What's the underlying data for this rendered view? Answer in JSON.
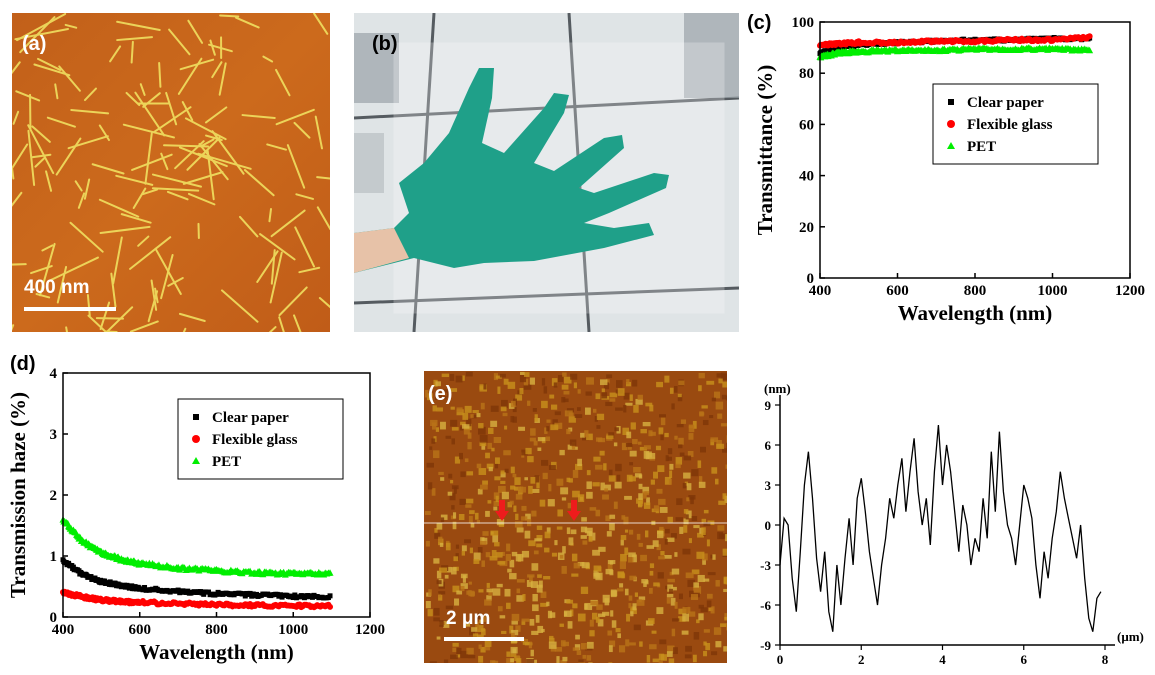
{
  "panels": {
    "a": {
      "label": "(a)",
      "scale_bar": "400 nm"
    },
    "b": {
      "label": "(b)"
    },
    "c": {
      "label": "(c)"
    },
    "d": {
      "label": "(d)"
    },
    "e": {
      "label": "(e)",
      "scale_bar": "2 μm"
    }
  },
  "chart_data": [
    {
      "panel": "c",
      "type": "scatter",
      "xlabel": "Wavelength (nm)",
      "ylabel": "Transmittance (%)",
      "xlim": [
        400,
        1200
      ],
      "ylim": [
        0,
        100
      ],
      "xticks": [
        400,
        600,
        800,
        1000,
        1200
      ],
      "yticks": [
        0,
        20,
        40,
        60,
        80,
        100
      ],
      "legend": "center-right",
      "series": [
        {
          "name": "Clear paper",
          "color": "#000000",
          "marker": "square",
          "x": [
            400,
            450,
            500,
            600,
            700,
            800,
            900,
            1000,
            1100
          ],
          "y": [
            88,
            90,
            91,
            92,
            92.5,
            93,
            93,
            93.5,
            93.5
          ]
        },
        {
          "name": "Flexible glass",
          "color": "#ff0000",
          "marker": "circle",
          "x": [
            400,
            450,
            500,
            600,
            700,
            800,
            900,
            1000,
            1100
          ],
          "y": [
            91,
            91.5,
            92,
            92,
            92.5,
            92.5,
            93,
            93,
            94
          ]
        },
        {
          "name": "PET",
          "color": "#00ee00",
          "marker": "triangle",
          "x": [
            400,
            450,
            500,
            600,
            700,
            800,
            900,
            1000,
            1100
          ],
          "y": [
            86.5,
            88,
            88.5,
            89,
            89,
            89.5,
            89.5,
            89.5,
            89
          ]
        }
      ]
    },
    {
      "panel": "d",
      "type": "scatter",
      "xlabel": "Wavelength (nm)",
      "ylabel": "Transmission haze (%)",
      "xlim": [
        400,
        1200
      ],
      "ylim": [
        0,
        4
      ],
      "xticks": [
        400,
        600,
        800,
        1000,
        1200
      ],
      "yticks": [
        0,
        1,
        2,
        3,
        4
      ],
      "legend": "upper-right",
      "series": [
        {
          "name": "Clear paper",
          "color": "#000000",
          "marker": "square",
          "x": [
            400,
            450,
            500,
            550,
            600,
            700,
            800,
            900,
            1000,
            1100
          ],
          "y": [
            0.92,
            0.7,
            0.58,
            0.52,
            0.47,
            0.42,
            0.38,
            0.36,
            0.34,
            0.33
          ]
        },
        {
          "name": "Flexible glass",
          "color": "#ff0000",
          "marker": "circle",
          "x": [
            400,
            450,
            500,
            550,
            600,
            700,
            800,
            900,
            1000,
            1100
          ],
          "y": [
            0.4,
            0.33,
            0.28,
            0.25,
            0.24,
            0.22,
            0.2,
            0.19,
            0.18,
            0.18
          ]
        },
        {
          "name": "PET",
          "color": "#00ee00",
          "marker": "triangle",
          "x": [
            400,
            450,
            500,
            550,
            600,
            700,
            800,
            900,
            1000,
            1100
          ],
          "y": [
            1.6,
            1.25,
            1.05,
            0.95,
            0.88,
            0.8,
            0.76,
            0.73,
            0.71,
            0.72
          ]
        }
      ]
    },
    {
      "panel": "e-profile",
      "type": "line",
      "xlabel": "(μm)",
      "ylabel": "(nm)",
      "xlim": [
        0,
        8
      ],
      "ylim": [
        -9,
        9
      ],
      "xticks": [
        0,
        2,
        4,
        6,
        8
      ],
      "yticks": [
        -9,
        -6,
        -3,
        0,
        3,
        6,
        9
      ],
      "series": [
        {
          "color": "#000000",
          "x": [
            0,
            0.1,
            0.2,
            0.3,
            0.4,
            0.5,
            0.6,
            0.7,
            0.8,
            0.9,
            1.0,
            1.1,
            1.2,
            1.3,
            1.4,
            1.5,
            1.6,
            1.7,
            1.8,
            1.9,
            2.0,
            2.1,
            2.2,
            2.3,
            2.4,
            2.5,
            2.6,
            2.7,
            2.8,
            2.9,
            3.0,
            3.1,
            3.2,
            3.3,
            3.4,
            3.5,
            3.6,
            3.7,
            3.8,
            3.9,
            4.0,
            4.1,
            4.2,
            4.3,
            4.4,
            4.5,
            4.6,
            4.7,
            4.8,
            4.9,
            5.0,
            5.1,
            5.2,
            5.3,
            5.4,
            5.5,
            5.6,
            5.7,
            5.8,
            5.9,
            6.0,
            6.1,
            6.2,
            6.3,
            6.4,
            6.5,
            6.6,
            6.7,
            6.8,
            6.9,
            7.0,
            7.1,
            7.2,
            7.3,
            7.4,
            7.5,
            7.6,
            7.7,
            7.8,
            7.9
          ],
          "y": [
            -3,
            0.5,
            0,
            -4,
            -6.5,
            -2,
            3,
            5.5,
            2,
            -2.5,
            -5,
            -2,
            -6.5,
            -8,
            -3,
            -6,
            -2.5,
            0.5,
            -3,
            2,
            3.5,
            1,
            -2,
            -4,
            -6,
            -3,
            -1,
            2,
            0.5,
            3,
            5,
            1,
            4,
            6.5,
            2.5,
            0,
            2,
            -1.5,
            4,
            7.5,
            3,
            6,
            4,
            1,
            -2,
            1.5,
            0,
            -3,
            -1,
            -2,
            2,
            -1,
            5.5,
            1,
            7,
            2.5,
            0,
            -1,
            -3,
            0,
            3,
            2,
            0.5,
            -3,
            -5.5,
            -2,
            -4,
            -1,
            1,
            4,
            2,
            0.5,
            -1,
            -2.5,
            0,
            -4,
            -7,
            -8,
            -5.5,
            -5
          ]
        }
      ]
    }
  ]
}
